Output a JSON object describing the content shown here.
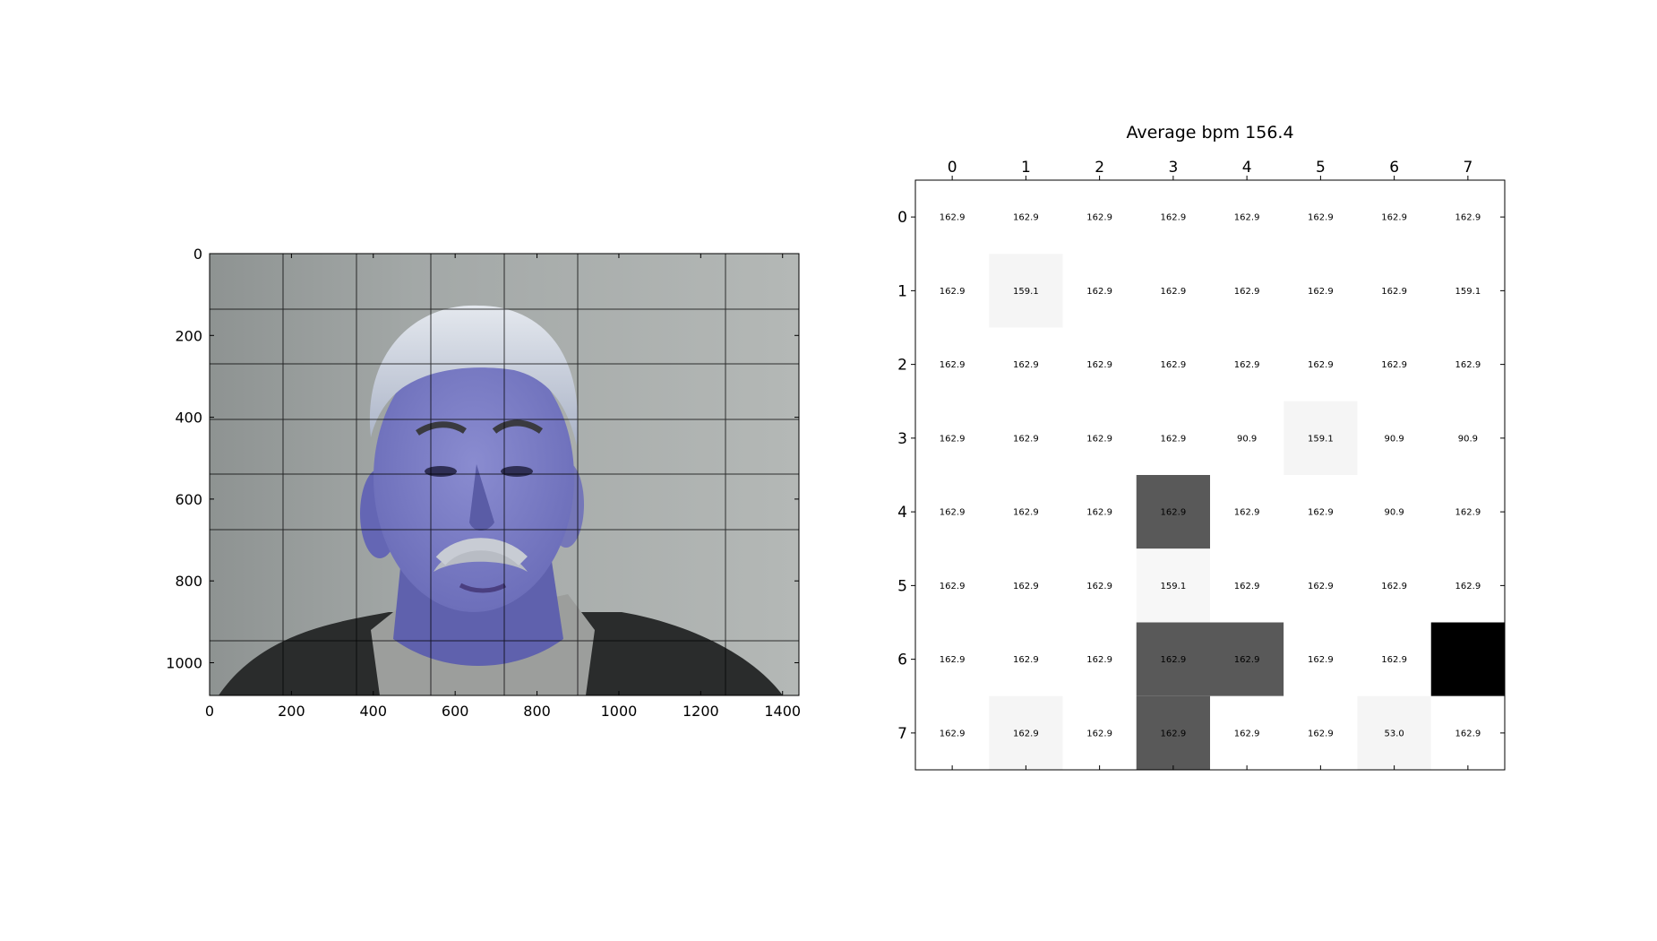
{
  "chart_data": [
    {
      "type": "image",
      "content": "photo of a grey-haired man with a moustache, blue-tinted face region, overlaid with grid lines",
      "x_ticks": [
        "0",
        "200",
        "400",
        "600",
        "800",
        "1000",
        "1200",
        "1400"
      ],
      "y_ticks": [
        "0",
        "200",
        "400",
        "600",
        "800",
        "1000"
      ],
      "xlim": [
        0,
        1440
      ],
      "ylim": [
        1080,
        0
      ],
      "grid": true
    },
    {
      "type": "heatmap",
      "title": "Average bpm 156.4",
      "x_ticks": [
        "0",
        "1",
        "2",
        "3",
        "4",
        "5",
        "6",
        "7"
      ],
      "y_ticks": [
        "0",
        "1",
        "2",
        "3",
        "4",
        "5",
        "6",
        "7"
      ],
      "values": [
        [
          "162.9",
          "162.9",
          "162.9",
          "162.9",
          "162.9",
          "162.9",
          "162.9",
          "162.9"
        ],
        [
          "162.9",
          "159.1",
          "162.9",
          "162.9",
          "162.9",
          "162.9",
          "162.9",
          "159.1"
        ],
        [
          "162.9",
          "162.9",
          "162.9",
          "162.9",
          "162.9",
          "162.9",
          "162.9",
          "162.9"
        ],
        [
          "162.9",
          "162.9",
          "162.9",
          "162.9",
          "90.9",
          "159.1",
          "90.9",
          "90.9"
        ],
        [
          "162.9",
          "162.9",
          "162.9",
          "162.9",
          "162.9",
          "162.9",
          "90.9",
          "162.9"
        ],
        [
          "162.9",
          "162.9",
          "162.9",
          "159.1",
          "162.9",
          "162.9",
          "162.9",
          "162.9"
        ],
        [
          "162.9",
          "162.9",
          "162.9",
          "162.9",
          "162.9",
          "162.9",
          "162.9",
          ""
        ],
        [
          "162.9",
          "162.9",
          "162.9",
          "162.9",
          "162.9",
          "162.9",
          "53.0",
          "162.9"
        ]
      ],
      "shade": [
        [
          0,
          0,
          0,
          0,
          0,
          0,
          0,
          0
        ],
        [
          0,
          0.04,
          0,
          0,
          0,
          0,
          0,
          0
        ],
        [
          0,
          0,
          0,
          0,
          0,
          0,
          0,
          0
        ],
        [
          0,
          0,
          0,
          0,
          0,
          0.04,
          0,
          0
        ],
        [
          0,
          0,
          0,
          0.65,
          0,
          0,
          0,
          0
        ],
        [
          0,
          0,
          0,
          0.03,
          0,
          0,
          0,
          0
        ],
        [
          0,
          0,
          0,
          0.65,
          0.65,
          0,
          0,
          1
        ],
        [
          0,
          0.04,
          0,
          0.65,
          0,
          0,
          0.04,
          0
        ]
      ],
      "colormap": "gray_r"
    }
  ]
}
